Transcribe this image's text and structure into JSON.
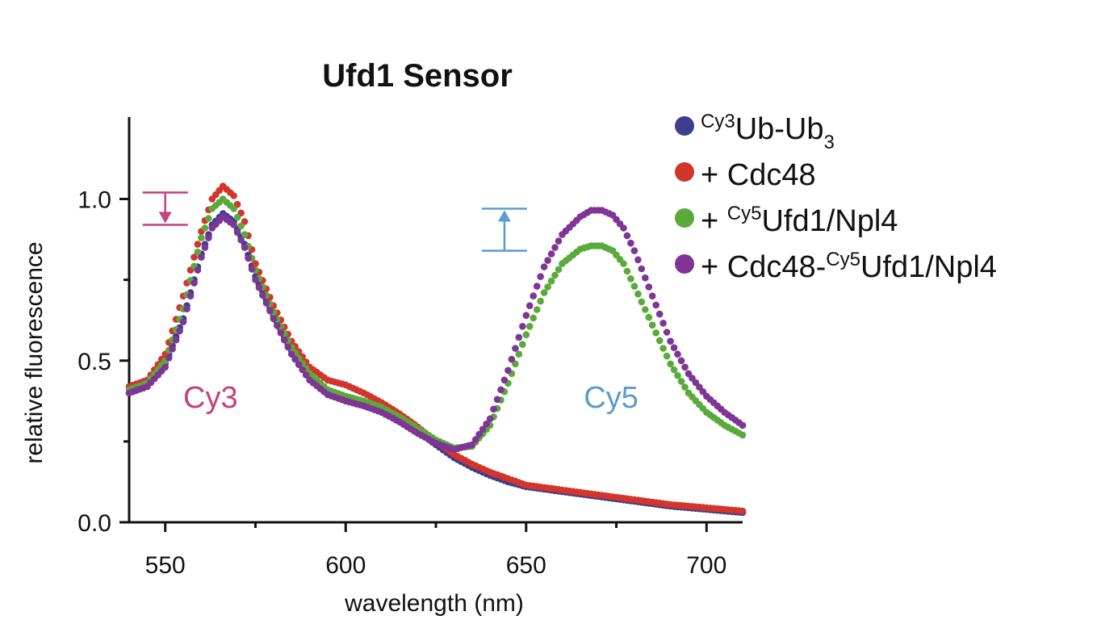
{
  "chart_data": {
    "type": "scatter",
    "title": "Ufd1 Sensor",
    "xlabel": "wavelength (nm)",
    "ylabel": "relative fluorescence",
    "xlim": [
      540,
      710
    ],
    "ylim": [
      0,
      1.25
    ],
    "x_major_ticks": [
      550,
      600,
      650,
      700
    ],
    "x_tick_labels": [
      "550",
      "600",
      "650",
      "700"
    ],
    "y_major_ticks": [
      0,
      0.5,
      1.0
    ],
    "y_tick_labels": [
      "0.0",
      "0.5",
      "1.0"
    ],
    "grid": false,
    "legend_position": "top-right",
    "legend": [
      {
        "prefix": "",
        "sup": "Cy3",
        "main": "Ub-Ub",
        "sub": "3",
        "rest": "",
        "color": "#3e3d8e"
      },
      {
        "prefix": "+ Cdc48",
        "sup": "",
        "main": "",
        "sub": "",
        "rest": "",
        "color": "#d2352b"
      },
      {
        "prefix": "+ ",
        "sup": "Cy5",
        "main": "Ufd1/Npl4",
        "sub": "",
        "rest": "",
        "color": "#5aaa3b"
      },
      {
        "prefix": "+ Cdc48-",
        "sup": "Cy5",
        "main": "Ufd1/Npl4",
        "sub": "",
        "rest": "",
        "color": "#7e3596"
      }
    ],
    "annotations": [
      {
        "text": "Cy3",
        "x": 555,
        "y": 0.39,
        "color": "#c2417f"
      },
      {
        "text": "Cy5",
        "x": 666,
        "y": 0.39,
        "color": "#5b9bd0"
      }
    ],
    "indicators": [
      {
        "name": "cy3-decrease",
        "x": 550,
        "y_from": 1.02,
        "y_to": 0.92,
        "color": "#c2417f",
        "direction": "down"
      },
      {
        "name": "cy5-increase",
        "x": 644,
        "y_from": 0.84,
        "y_to": 0.97,
        "color": "#5b9bd0",
        "direction": "up"
      }
    ],
    "series_x_range": [
      540,
      710
    ],
    "series_x_step": 1,
    "series": [
      {
        "name": "Cy3Ub-Ub3",
        "color": "#3e3d8e",
        "x": [
          540,
          545,
          550,
          555,
          560,
          563,
          566,
          569,
          572,
          575,
          580,
          585,
          590,
          595,
          600,
          605,
          610,
          615,
          620,
          625,
          630,
          635,
          640,
          645,
          650,
          660,
          670,
          680,
          690,
          700,
          710
        ],
        "y": [
          0.4,
          0.42,
          0.49,
          0.63,
          0.83,
          0.92,
          0.955,
          0.93,
          0.86,
          0.76,
          0.64,
          0.53,
          0.45,
          0.405,
          0.385,
          0.37,
          0.35,
          0.32,
          0.28,
          0.24,
          0.2,
          0.17,
          0.145,
          0.125,
          0.11,
          0.095,
          0.08,
          0.065,
          0.05,
          0.04,
          0.03
        ]
      },
      {
        "name": "+ Cdc48",
        "color": "#d2352b",
        "x": [
          540,
          545,
          550,
          555,
          560,
          563,
          566,
          569,
          572,
          575,
          580,
          585,
          590,
          595,
          600,
          605,
          610,
          615,
          620,
          625,
          630,
          635,
          640,
          645,
          650,
          660,
          670,
          680,
          690,
          700,
          710
        ],
        "y": [
          0.42,
          0.44,
          0.52,
          0.7,
          0.9,
          1.0,
          1.04,
          1.01,
          0.93,
          0.8,
          0.67,
          0.56,
          0.48,
          0.44,
          0.425,
          0.4,
          0.37,
          0.335,
          0.295,
          0.25,
          0.21,
          0.18,
          0.155,
          0.135,
          0.115,
          0.1,
          0.085,
          0.07,
          0.055,
          0.045,
          0.035
        ]
      },
      {
        "name": "+ Cy5Ufd1/Npl4",
        "color": "#5aaa3b",
        "x": [
          540,
          545,
          550,
          555,
          560,
          563,
          566,
          569,
          572,
          575,
          580,
          585,
          590,
          595,
          600,
          605,
          610,
          615,
          620,
          625,
          630,
          635,
          640,
          645,
          650,
          655,
          660,
          665,
          668,
          671,
          674,
          677,
          680,
          685,
          690,
          695,
          700,
          705,
          710
        ],
        "y": [
          0.41,
          0.43,
          0.5,
          0.66,
          0.88,
          0.97,
          1.0,
          0.97,
          0.89,
          0.78,
          0.65,
          0.54,
          0.46,
          0.41,
          0.39,
          0.375,
          0.355,
          0.325,
          0.29,
          0.255,
          0.23,
          0.235,
          0.3,
          0.43,
          0.58,
          0.71,
          0.8,
          0.845,
          0.855,
          0.855,
          0.84,
          0.8,
          0.73,
          0.61,
          0.49,
          0.4,
          0.34,
          0.3,
          0.27
        ]
      },
      {
        "name": "+ Cdc48-Cy5Ufd1/Npl4",
        "color": "#7e3596",
        "x": [
          540,
          545,
          550,
          555,
          560,
          563,
          566,
          569,
          572,
          575,
          580,
          585,
          590,
          595,
          600,
          605,
          610,
          615,
          620,
          625,
          630,
          635,
          640,
          645,
          650,
          655,
          660,
          665,
          668,
          671,
          674,
          677,
          680,
          685,
          690,
          695,
          700,
          705,
          710
        ],
        "y": [
          0.4,
          0.42,
          0.48,
          0.62,
          0.82,
          0.91,
          0.945,
          0.92,
          0.85,
          0.75,
          0.63,
          0.52,
          0.44,
          0.395,
          0.375,
          0.36,
          0.34,
          0.31,
          0.275,
          0.245,
          0.225,
          0.24,
          0.32,
          0.47,
          0.64,
          0.79,
          0.89,
          0.945,
          0.965,
          0.965,
          0.95,
          0.91,
          0.84,
          0.7,
          0.56,
          0.46,
          0.39,
          0.34,
          0.3
        ]
      }
    ]
  }
}
